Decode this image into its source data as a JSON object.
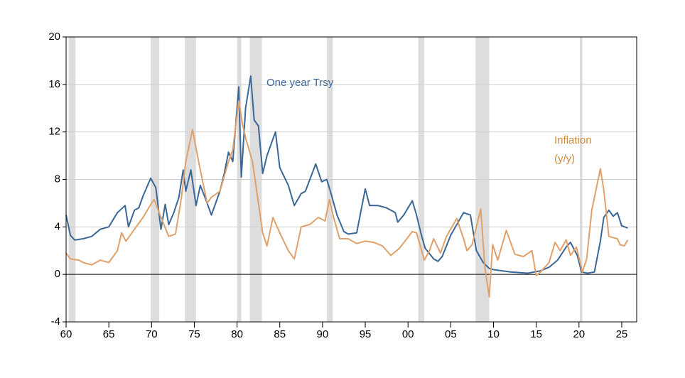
{
  "chart_data": {
    "type": "line",
    "annotations": [
      {
        "text": "One year Trsy",
        "series": 0
      },
      {
        "text": "Inflation",
        "series": 1
      },
      {
        "text": "(y/y)",
        "series": 1
      }
    ],
    "xlim": [
      1960,
      2026.75
    ],
    "xticks": [
      {
        "value": 1960,
        "label": "60"
      },
      {
        "value": 1965,
        "label": "65"
      },
      {
        "value": 1970,
        "label": "70"
      },
      {
        "value": 1975,
        "label": "75"
      },
      {
        "value": 1980,
        "label": "80"
      },
      {
        "value": 1985,
        "label": "85"
      },
      {
        "value": 1990,
        "label": "90"
      },
      {
        "value": 1995,
        "label": "95"
      },
      {
        "value": 2000,
        "label": "00"
      },
      {
        "value": 2005,
        "label": "05"
      },
      {
        "value": 2010,
        "label": "10"
      },
      {
        "value": 2015,
        "label": "15"
      },
      {
        "value": 2020,
        "label": "20"
      },
      {
        "value": 2025,
        "label": "25"
      }
    ],
    "ylim": [
      -4,
      20
    ],
    "yticks": [
      -4,
      0,
      4,
      8,
      12,
      16,
      20
    ],
    "grid": true,
    "recessions": [
      [
        1960.3,
        1961.1
      ],
      [
        1969.9,
        1970.9
      ],
      [
        1973.9,
        1975.2
      ],
      [
        1980.0,
        1980.5
      ],
      [
        1981.5,
        1982.9
      ],
      [
        1990.5,
        1991.2
      ],
      [
        2001.2,
        2001.9
      ],
      [
        2007.9,
        2009.5
      ],
      [
        2020.1,
        2020.4
      ]
    ],
    "recession_color": "#dddddd",
    "series": [
      {
        "name": "One year Trsy",
        "color": "#3a6796",
        "x": [
          1960.0,
          1960.5,
          1961,
          1962,
          1963,
          1964,
          1965,
          1966,
          1966.9,
          1967.3,
          1968,
          1968.5,
          1969,
          1969.9,
          1970.5,
          1971.1,
          1971.6,
          1972,
          1972.6,
          1973.2,
          1973.7,
          1974.0,
          1974.6,
          1975.2,
          1975.7,
          1976.5,
          1977,
          1977.5,
          1978,
          1978.5,
          1979,
          1979.5,
          1980.2,
          1980.5,
          1981.0,
          1981.6,
          1982,
          1982.5,
          1983,
          1983.5,
          1984.5,
          1985.0,
          1986.0,
          1986.7,
          1987.5,
          1988,
          1989.2,
          1989.9,
          1990.5,
          1991.0,
          1991.7,
          1992.5,
          1993.0,
          1994.0,
          1995.0,
          1995.5,
          1996.5,
          1997.5,
          1998.5,
          1998.8,
          1999.5,
          2000.5,
          2001.0,
          2001.5,
          2002,
          2003,
          2003.5,
          2004,
          2005,
          2006.5,
          2007.3,
          2008,
          2008.8,
          2009.5,
          2010,
          2012,
          2014,
          2015.5,
          2016.5,
          2017.5,
          2018.5,
          2019,
          2019.8,
          2020.3,
          2021,
          2021.8,
          2022.5,
          2022.9,
          2023.5,
          2024,
          2024.5,
          2025,
          2025.7
        ],
        "values": [
          5.0,
          3.3,
          2.9,
          3.0,
          3.2,
          3.8,
          4.0,
          5.2,
          5.8,
          4.0,
          5.4,
          5.6,
          6.6,
          8.1,
          7.3,
          3.8,
          5.9,
          4.2,
          5.2,
          6.5,
          8.8,
          7.0,
          8.8,
          5.8,
          7.5,
          6.0,
          5.0,
          6.0,
          7.0,
          8.5,
          10.3,
          9.5,
          15.8,
          8.2,
          14.0,
          16.7,
          13.0,
          12.5,
          8.5,
          10.0,
          12.0,
          9.0,
          7.5,
          5.8,
          6.8,
          7.0,
          9.3,
          7.8,
          8.0,
          6.8,
          5.0,
          3.6,
          3.4,
          3.5,
          7.2,
          5.8,
          5.8,
          5.6,
          5.2,
          4.4,
          5.0,
          6.2,
          5.0,
          3.5,
          2.2,
          1.3,
          1.1,
          1.5,
          3.3,
          5.2,
          5.0,
          2.0,
          1.0,
          0.5,
          0.4,
          0.2,
          0.1,
          0.3,
          0.6,
          1.2,
          2.3,
          2.7,
          1.6,
          0.2,
          0.1,
          0.2,
          2.8,
          4.8,
          5.4,
          4.9,
          5.2,
          4.1,
          3.9
        ]
      },
      {
        "name": "Inflation",
        "color": "#e0a06a",
        "x": [
          1960,
          1960.5,
          1961.5,
          1962,
          1963,
          1964,
          1965,
          1966,
          1966.5,
          1967,
          1968,
          1969,
          1970,
          1970.3,
          1971,
          1972,
          1972.8,
          1973.5,
          1974.0,
          1974.8,
          1975.5,
          1976.5,
          1977,
          1978,
          1979,
          1979.5,
          1980.2,
          1980.6,
          1981.0,
          1981.8,
          1982.5,
          1983,
          1983.5,
          1984.2,
          1985,
          1986,
          1986.7,
          1987.5,
          1988.5,
          1989.5,
          1990.3,
          1990.8,
          1991.3,
          1992,
          1993,
          1994,
          1995,
          1996,
          1997,
          1998,
          1999,
          2000.5,
          2001,
          2001.9,
          2002.5,
          2003,
          2003.8,
          2004.5,
          2005.7,
          2006.5,
          2006.9,
          2007.5,
          2008.5,
          2009.0,
          2009.5,
          2009.9,
          2010.5,
          2011.5,
          2012.5,
          2013.5,
          2014.5,
          2015,
          2015.5,
          2016.5,
          2017.2,
          2017.8,
          2018.5,
          2019,
          2019.7,
          2020.4,
          2020.9,
          2021.5,
          2022.5,
          2022.9,
          2023.5,
          2024.0,
          2024.5,
          2024.8,
          2025.3,
          2025.7
        ],
        "values": [
          1.8,
          1.3,
          1.2,
          1.0,
          0.8,
          1.2,
          1.0,
          2.0,
          3.5,
          2.8,
          3.8,
          4.8,
          6.0,
          6.3,
          5.0,
          3.2,
          3.4,
          6.5,
          9.5,
          12.2,
          9.5,
          6.0,
          6.5,
          7.0,
          9.5,
          10.5,
          14.6,
          12.8,
          11.5,
          9.5,
          6.0,
          3.5,
          2.4,
          4.8,
          3.5,
          2.0,
          1.3,
          4.0,
          4.2,
          4.8,
          4.5,
          6.3,
          4.8,
          3.0,
          3.0,
          2.6,
          2.8,
          2.7,
          2.4,
          1.6,
          2.2,
          3.6,
          3.5,
          1.2,
          2.0,
          3.0,
          1.8,
          3.2,
          4.7,
          3.0,
          2.0,
          2.5,
          5.5,
          0.5,
          -1.9,
          2.5,
          1.2,
          3.7,
          1.7,
          1.5,
          2.0,
          -0.1,
          0.2,
          1.0,
          2.7,
          2.0,
          2.9,
          1.6,
          2.3,
          0.2,
          1.3,
          5.4,
          8.9,
          7.1,
          3.2,
          3.1,
          3.0,
          2.5,
          2.4,
          2.9
        ]
      }
    ]
  }
}
